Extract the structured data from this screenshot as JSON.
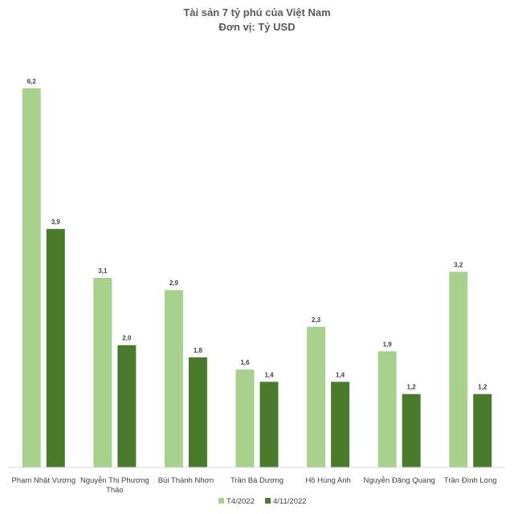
{
  "chart_data": {
    "type": "bar",
    "title": "Tài sản 7 tỷ phú của Việt Nam",
    "subtitle": "Đơn vị: Tỷ USD",
    "categories": [
      [
        "Phạm Nhật Vượng"
      ],
      [
        "Nguyễn Thị Phương",
        "Thảo"
      ],
      [
        "Bùi Thành Nhơn"
      ],
      [
        "Trần Bá Dương"
      ],
      [
        "Hồ Hùng Anh"
      ],
      [
        "Nguyễn Đăng Quang"
      ],
      [
        "Trần Đình Long"
      ]
    ],
    "series": [
      {
        "name": "T4/2022",
        "color": "#a9d18e",
        "values": [
          6.2,
          3.1,
          2.9,
          1.6,
          2.3,
          1.9,
          3.2
        ],
        "labels": [
          "6,2",
          "3,1",
          "2,9",
          "1,6",
          "2,3",
          "1,9",
          "3,2"
        ]
      },
      {
        "name": "4/11/2022",
        "color": "#4a7a2c",
        "values": [
          3.9,
          2.0,
          1.8,
          1.4,
          1.4,
          1.2,
          1.2
        ],
        "labels": [
          "3,9",
          "2,0",
          "1,8",
          "1,4",
          "1,4",
          "1,2",
          "1,2"
        ]
      }
    ],
    "ylim": [
      0,
      6.2
    ],
    "grid": false,
    "legend": "bottom"
  }
}
